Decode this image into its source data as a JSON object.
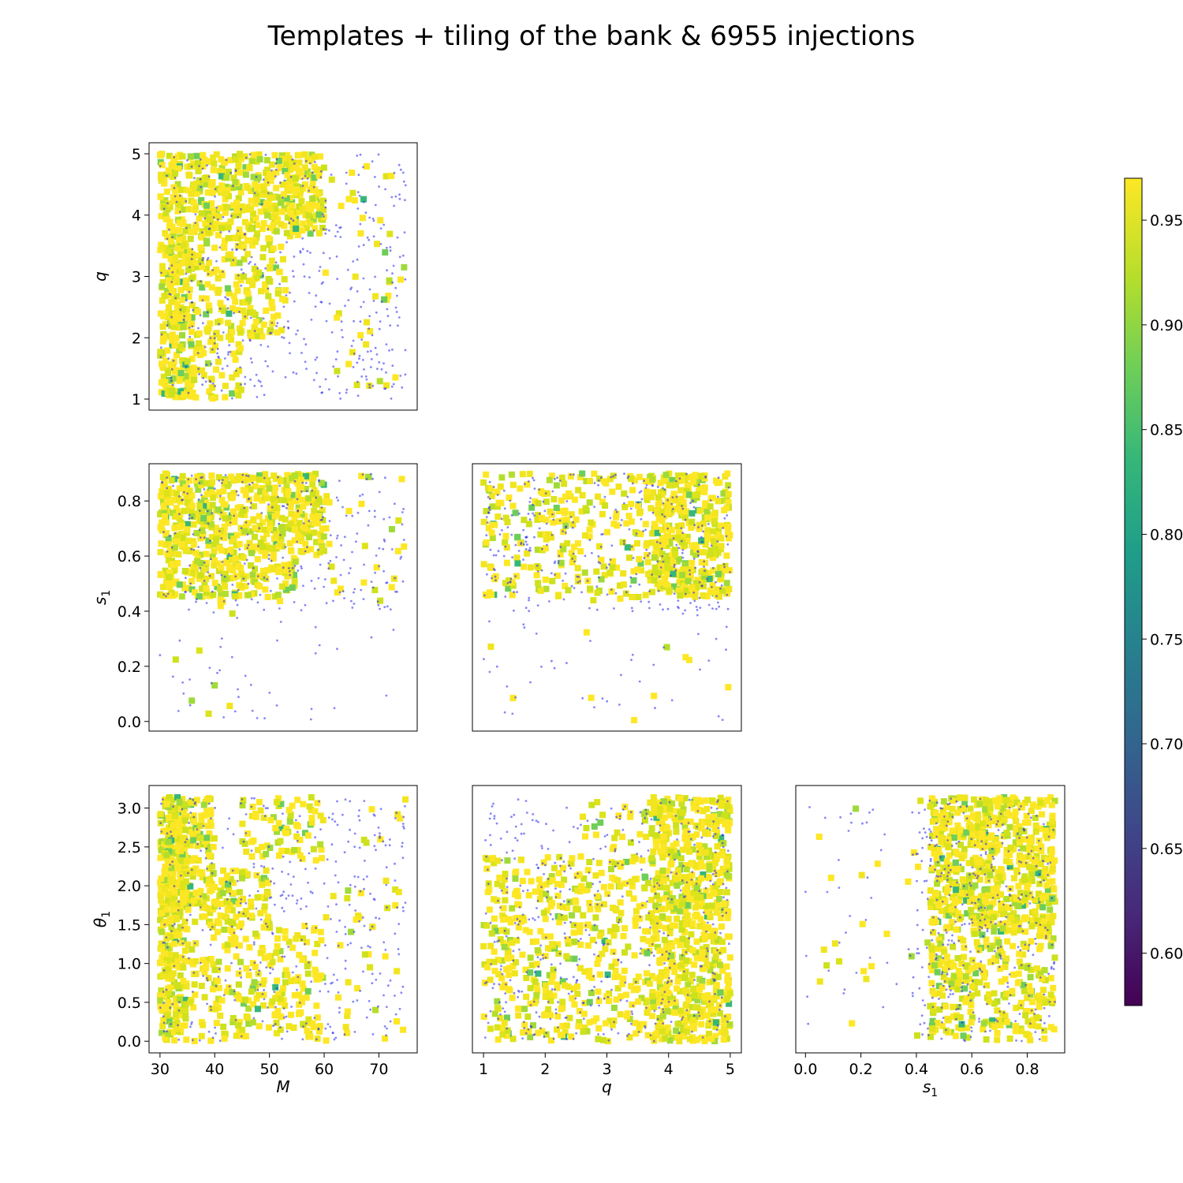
{
  "figure": {
    "title": "Templates + tiling of the bank & 6955 injections"
  },
  "colors": {
    "injection_points": "#2222ee",
    "frame": "#000000",
    "colormap": [
      "#440154",
      "#482878",
      "#3e4989",
      "#31688e",
      "#26828e",
      "#1f9e89",
      "#35b779",
      "#6ece58",
      "#b5de2b",
      "#fde725"
    ]
  },
  "chart_data": [
    {
      "id": "M_q",
      "type": "scatter",
      "xlabel": "",
      "ylabel": "q",
      "xlim": [
        28,
        77
      ],
      "ylim": [
        0.82,
        5.18
      ],
      "xticks": [],
      "yticks": [
        1,
        2,
        3,
        4,
        5
      ],
      "tile_regions": [
        {
          "x": [
            30,
            60
          ],
          "y": [
            3.65,
            5.0
          ],
          "density": 0.9
        },
        {
          "x": [
            30,
            53
          ],
          "y": [
            2.0,
            3.65
          ],
          "density": 0.45
        },
        {
          "x": [
            30,
            36
          ],
          "y": [
            1.0,
            3.65
          ],
          "density": 0.8
        },
        {
          "x": [
            30,
            45
          ],
          "y": [
            1.0,
            2.0
          ],
          "density": 0.35
        },
        {
          "x": [
            60,
            75
          ],
          "y": [
            1.0,
            5.0
          ],
          "density": 0.05
        }
      ],
      "injection_regions": [
        {
          "x": [
            30,
            75
          ],
          "y": [
            1.0,
            5.0
          ],
          "count": 450
        }
      ]
    },
    {
      "id": "M_s1",
      "type": "scatter",
      "xlabel": "",
      "ylabel": "s1",
      "xlim": [
        28,
        77
      ],
      "ylim": [
        -0.035,
        0.935
      ],
      "xticks": [],
      "yticks": [
        0.0,
        0.2,
        0.4,
        0.6,
        0.8
      ],
      "tile_regions": [
        {
          "x": [
            30,
            60
          ],
          "y": [
            0.6,
            0.9
          ],
          "density": 0.9
        },
        {
          "x": [
            30,
            55
          ],
          "y": [
            0.45,
            0.6
          ],
          "density": 0.75
        },
        {
          "x": [
            60,
            75
          ],
          "y": [
            0.45,
            0.9
          ],
          "density": 0.06
        },
        {
          "x": [
            30,
            75
          ],
          "y": [
            0.0,
            0.45
          ],
          "density": 0.01
        }
      ],
      "injection_regions": [
        {
          "x": [
            30,
            75
          ],
          "y": [
            0.4,
            0.9
          ],
          "count": 260
        },
        {
          "x": [
            30,
            75
          ],
          "y": [
            0.0,
            0.4
          ],
          "count": 40
        }
      ]
    },
    {
      "id": "q_s1",
      "type": "scatter",
      "xlabel": "",
      "ylabel": "",
      "xlim": [
        0.82,
        5.18
      ],
      "ylim": [
        -0.035,
        0.935
      ],
      "xticks": [],
      "yticks": [],
      "tile_regions": [
        {
          "x": [
            3.7,
            5.0
          ],
          "y": [
            0.45,
            0.9
          ],
          "density": 0.95
        },
        {
          "x": [
            1.0,
            3.7
          ],
          "y": [
            0.45,
            0.9
          ],
          "density": 0.3
        },
        {
          "x": [
            1.0,
            5.0
          ],
          "y": [
            0.0,
            0.45
          ],
          "density": 0.01
        }
      ],
      "injection_regions": [
        {
          "x": [
            1.0,
            5.0
          ],
          "y": [
            0.4,
            0.9
          ],
          "count": 320
        },
        {
          "x": [
            1.0,
            5.0
          ],
          "y": [
            0.0,
            0.4
          ],
          "count": 40
        }
      ]
    },
    {
      "id": "M_theta1",
      "type": "scatter",
      "xlabel": "M",
      "ylabel": "θ1",
      "xlim": [
        28,
        77
      ],
      "ylim": [
        -0.15,
        3.29
      ],
      "xticks": [
        30,
        40,
        50,
        60,
        70
      ],
      "yticks": [
        0.0,
        0.5,
        1.0,
        1.5,
        2.0,
        2.5,
        3.0
      ],
      "tile_regions": [
        {
          "x": [
            30,
            40
          ],
          "y": [
            1.5,
            3.14
          ],
          "density": 0.9
        },
        {
          "x": [
            30,
            35
          ],
          "y": [
            0.0,
            3.14
          ],
          "density": 0.8
        },
        {
          "x": [
            40,
            50
          ],
          "y": [
            1.5,
            2.2
          ],
          "density": 0.7
        },
        {
          "x": [
            45,
            60
          ],
          "y": [
            2.3,
            3.14
          ],
          "density": 0.35
        },
        {
          "x": [
            30,
            60
          ],
          "y": [
            0.0,
            1.5
          ],
          "density": 0.35
        },
        {
          "x": [
            60,
            75
          ],
          "y": [
            0.0,
            3.14
          ],
          "density": 0.05
        }
      ],
      "injection_regions": [
        {
          "x": [
            30,
            75
          ],
          "y": [
            0.0,
            3.14
          ],
          "count": 400
        }
      ]
    },
    {
      "id": "q_theta1",
      "type": "scatter",
      "xlabel": "q",
      "ylabel": "",
      "xlim": [
        0.82,
        5.18
      ],
      "ylim": [
        -0.15,
        3.29
      ],
      "xticks": [
        1,
        2,
        3,
        4,
        5
      ],
      "yticks": [],
      "tile_regions": [
        {
          "x": [
            3.7,
            5.0
          ],
          "y": [
            0.0,
            3.14
          ],
          "density": 0.9
        },
        {
          "x": [
            1.0,
            3.7
          ],
          "y": [
            0.0,
            2.4
          ],
          "density": 0.35
        },
        {
          "x": [
            2.5,
            3.7
          ],
          "y": [
            2.4,
            3.1
          ],
          "density": 0.15
        }
      ],
      "injection_regions": [
        {
          "x": [
            1.0,
            5.0
          ],
          "y": [
            0.0,
            3.14
          ],
          "count": 450
        }
      ]
    },
    {
      "id": "s1_theta1",
      "type": "scatter",
      "xlabel": "s1",
      "ylabel": "",
      "xlim": [
        -0.035,
        0.935
      ],
      "ylim": [
        -0.15,
        3.29
      ],
      "xticks": [
        0.0,
        0.2,
        0.4,
        0.6,
        0.8
      ],
      "yticks": [],
      "tile_regions": [
        {
          "x": [
            0.45,
            0.9
          ],
          "y": [
            1.5,
            3.14
          ],
          "density": 0.95
        },
        {
          "x": [
            0.45,
            0.9
          ],
          "y": [
            0.0,
            1.5
          ],
          "density": 0.5
        },
        {
          "x": [
            0.0,
            0.45
          ],
          "y": [
            0.0,
            3.14
          ],
          "density": 0.02
        }
      ],
      "injection_regions": [
        {
          "x": [
            0.4,
            0.9
          ],
          "y": [
            0.0,
            3.14
          ],
          "count": 350
        },
        {
          "x": [
            0.0,
            0.4
          ],
          "y": [
            0.0,
            3.14
          ],
          "count": 40
        }
      ]
    }
  ],
  "colorbar": {
    "range": [
      0.575,
      0.97
    ],
    "ticks": [
      {
        "value": 0.6,
        "label": "0.60"
      },
      {
        "value": 0.65,
        "label": "0.65"
      },
      {
        "value": 0.7,
        "label": "0.70"
      },
      {
        "value": 0.75,
        "label": "0.75"
      },
      {
        "value": 0.8,
        "label": "0.80"
      },
      {
        "value": 0.85,
        "label": "0.85"
      },
      {
        "value": 0.9,
        "label": "0.90"
      },
      {
        "value": 0.95,
        "label": "0.95"
      }
    ]
  }
}
